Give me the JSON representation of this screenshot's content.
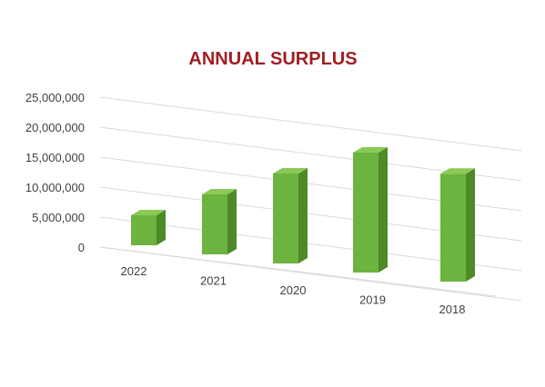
{
  "chart_data": {
    "type": "bar",
    "title": "ANNUAL SURPLUS",
    "categories": [
      "2022",
      "2021",
      "2020",
      "2019",
      "2018"
    ],
    "series": [
      {
        "values": [
          5000000,
          10000000,
          15000000,
          20000000,
          18000000
        ]
      }
    ],
    "ylim": [
      0,
      25000000
    ],
    "yticks": [
      "0",
      "5,000,000",
      "10,000,000",
      "15,000,000",
      "20,000,000",
      "25,000,000"
    ],
    "xlabel": "",
    "ylabel": "",
    "grid": true,
    "view": "3d-perspective",
    "colors": {
      "title": "#A01E23",
      "bar_front": "#6DB33F",
      "bar_side": "#4E8A28",
      "bar_top": "#8CC957",
      "grid": "#D9D9D9",
      "ticks": "#404040"
    }
  }
}
